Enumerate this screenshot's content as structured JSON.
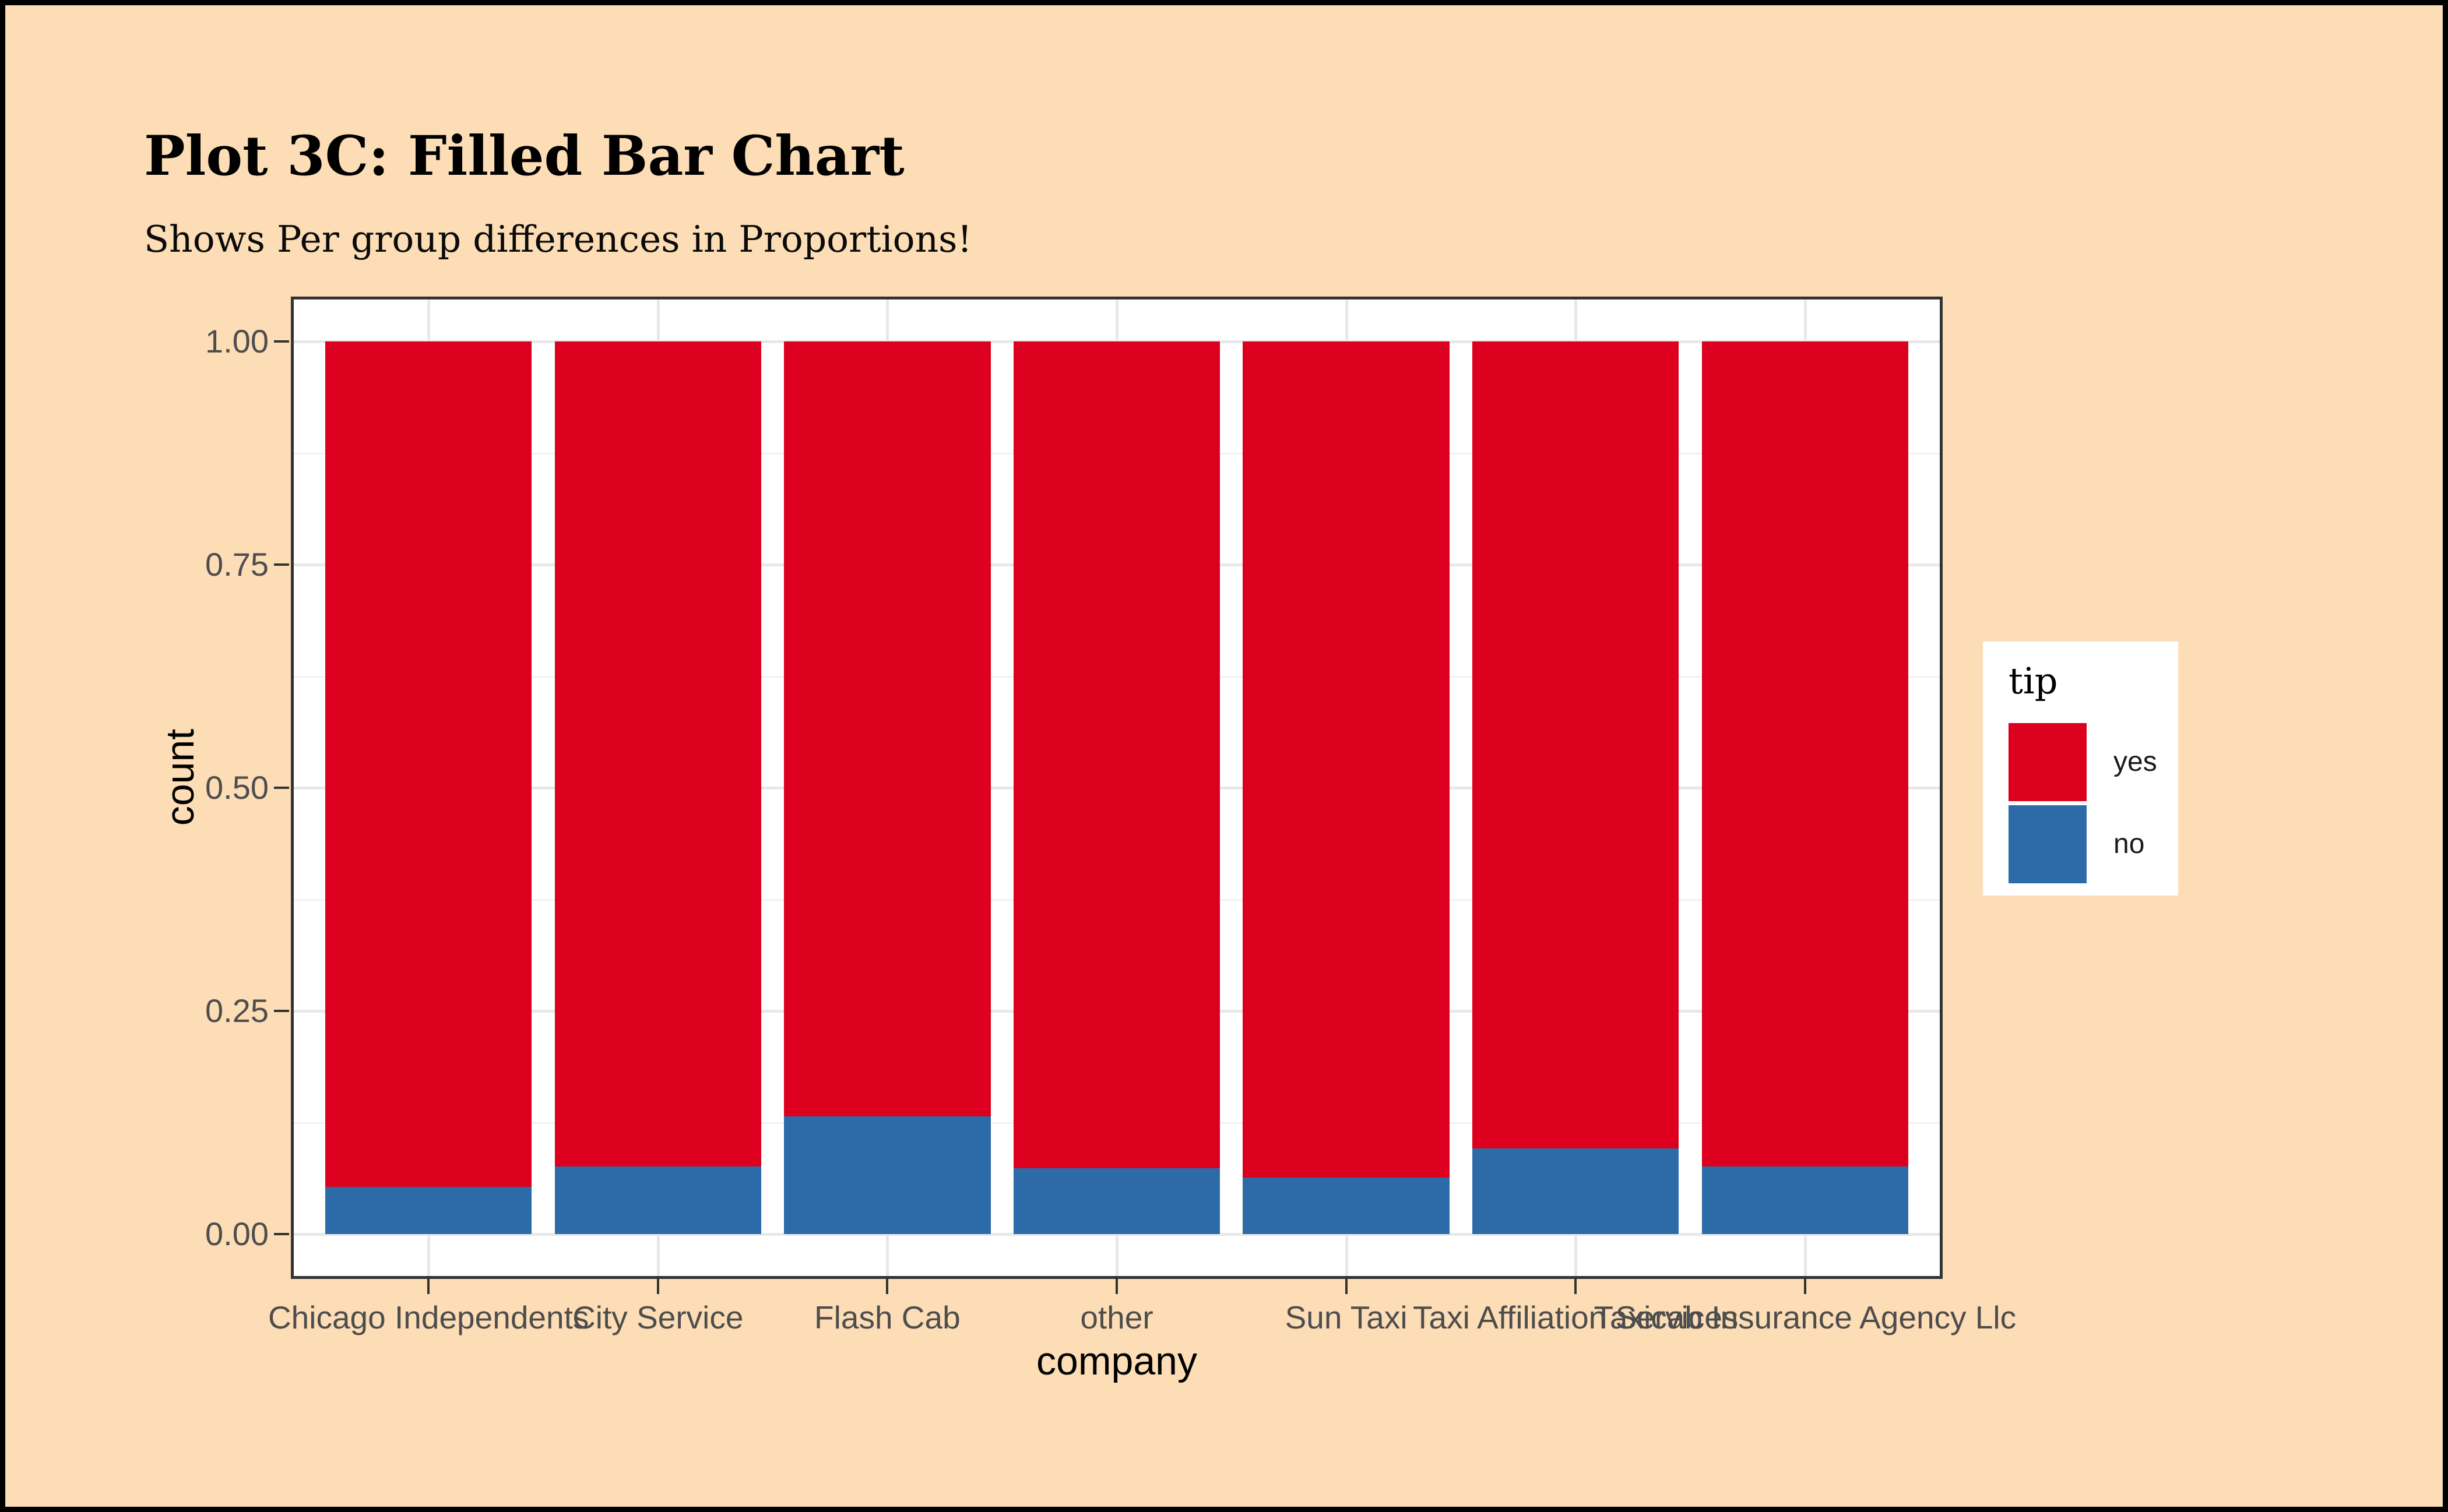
{
  "page": {
    "background_color": "#FCDDB5",
    "frame_color": "#000000",
    "panel_background": "#FFFFFF"
  },
  "chart_data": {
    "type": "bar",
    "stacked": true,
    "normalized_fill": true,
    "title": "Plot 3C: Filled Bar Chart",
    "subtitle": "Shows Per group differences in Proportions!",
    "xlabel": "company",
    "ylabel": "count",
    "categories": [
      "Chicago Independents",
      "City Service",
      "Flash Cab",
      "other",
      "Sun Taxi",
      "Taxi Affiliation Services",
      "Taxicab Insurance Agency Llc"
    ],
    "series": [
      {
        "name": "yes",
        "color": "#DC001E",
        "values": [
          0.947,
          0.924,
          0.868,
          0.926,
          0.937,
          0.904,
          0.924
        ]
      },
      {
        "name": "no",
        "color": "#2D6BA8",
        "values": [
          0.053,
          0.076,
          0.132,
          0.074,
          0.063,
          0.096,
          0.076
        ]
      }
    ],
    "ylim": [
      0,
      1
    ],
    "y_ticks": [
      {
        "label": "1.00",
        "value": 1.0
      },
      {
        "label": "0.75",
        "value": 0.75
      },
      {
        "label": "0.50",
        "value": 0.5
      },
      {
        "label": "0.25",
        "value": 0.25
      },
      {
        "label": "0.00",
        "value": 0.0
      }
    ],
    "y_minor_gridlines": [
      0.875,
      0.625,
      0.375,
      0.125
    ],
    "grid": {
      "on": true,
      "major_color": "#E8E8E8",
      "minor_color": "#F2F2F2"
    },
    "legend": {
      "title": "tip",
      "position": "right",
      "entries": [
        {
          "label": "yes",
          "color": "#DC001E"
        },
        {
          "label": "no",
          "color": "#2D6BA8"
        }
      ]
    },
    "axis": {
      "text_color": "#4D4D4D",
      "title_color": "#000000",
      "tick_color": "#333333",
      "panel_border_color": "#333333"
    }
  }
}
